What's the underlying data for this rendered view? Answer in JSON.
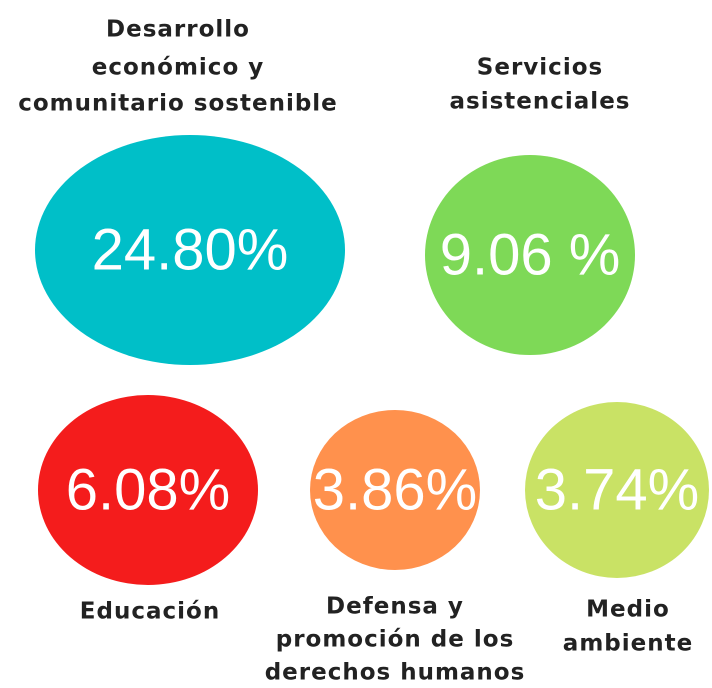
{
  "items": [
    {
      "label_lines": [
        "Desarrollo",
        "económico y",
        "comunitario sostenible"
      ],
      "value_label": "24.80%"
    },
    {
      "label_lines": [
        "Servicios",
        "asistenciales"
      ],
      "value_label": "9.06 %"
    },
    {
      "label_lines": [
        "Educación"
      ],
      "value_label": "6.08%"
    },
    {
      "label_lines": [
        "Defensa y",
        "promoción de los",
        "derechos humanos"
      ],
      "value_label": "3.86%"
    },
    {
      "label_lines": [
        "Medio",
        "ambiente"
      ],
      "value_label": "3.74%"
    }
  ]
}
